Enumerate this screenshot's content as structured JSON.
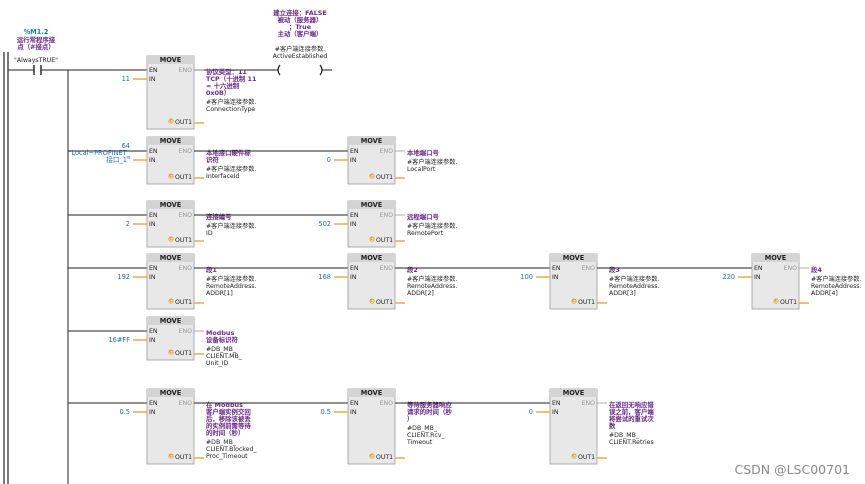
{
  "contact": {
    "address": "%M1.2",
    "comment_lines": [
      "运行常程序接",
      "点（#接点）"
    ],
    "tag": "\"AlwaysTRUE\""
  },
  "coil": {
    "label_lines": [
      "建立连接：FALSE",
      "被动（服务器）",
      "；True",
      "主动（客户端）"
    ],
    "comment": "#客户端连接参数.",
    "member": "ActiveEstablished"
  },
  "block_title": "MOVE",
  "pins": {
    "en": "EN",
    "eno": "ENO",
    "in": "IN",
    "out1": "OUT1"
  },
  "rows": [
    {
      "blocks": [
        {
          "in_value": [
            "11"
          ],
          "out_lines": [
            "协议类型：11",
            "TCP（十进制 11",
            "= 十六进制",
            "0x0B）"
          ],
          "out_comment": [
            "#客户端连接参数.",
            "ConnectionType"
          ]
        }
      ]
    },
    {
      "blocks": [
        {
          "in_value": [
            "64",
            "\"Local~PROFINET_",
            "接口_1\""
          ],
          "out_lines": [
            "本地接口硬件标",
            "识符"
          ],
          "out_comment": [
            "#客户端连接参数.",
            "InterfaceId"
          ]
        },
        {
          "in_value": [
            "0"
          ],
          "out_lines": [
            "本地端口号"
          ],
          "out_comment": [
            "#客户端连接参数.",
            "LocalPort"
          ]
        }
      ]
    },
    {
      "blocks": [
        {
          "in_value": [
            "2"
          ],
          "out_lines": [
            "连接编号"
          ],
          "out_comment": [
            "#客户端连接参数.",
            "ID"
          ]
        },
        {
          "in_value": [
            "502"
          ],
          "out_lines": [
            "远程端口号"
          ],
          "out_comment": [
            "#客户端连接参数.",
            "RemotePort"
          ]
        }
      ]
    },
    {
      "blocks": [
        {
          "in_value": [
            "192"
          ],
          "out_lines": [
            "段1"
          ],
          "out_comment": [
            "#客户端连接参数.",
            "RemoteAddress.",
            "ADDR[1]"
          ]
        },
        {
          "in_value": [
            "168"
          ],
          "out_lines": [
            "段2"
          ],
          "out_comment": [
            "#客户端连接参数.",
            "RemoteAddress.",
            "ADDR[2]"
          ]
        },
        {
          "in_value": [
            "100"
          ],
          "out_lines": [
            "段3"
          ],
          "out_comment": [
            "#客户端连接参数.",
            "RemoteAddress.",
            "ADDR[3]"
          ]
        },
        {
          "in_value": [
            "220"
          ],
          "out_lines": [
            "段4"
          ],
          "out_comment": [
            "#客户端连接参数.",
            "RemoteAddress.",
            "ADDR[4]"
          ]
        }
      ]
    },
    {
      "blocks": [
        {
          "in_value": [
            "16#FF"
          ],
          "out_lines": [
            "Modbus",
            "设备标识符"
          ],
          "out_comment": [
            "#DB_MB_",
            "CLIENT.MB_",
            "Unit_ID"
          ]
        }
      ]
    },
    {
      "blocks": [
        {
          "in_value": [
            "0.5"
          ],
          "out_lines": [
            "在 Modbus",
            "客户端实例交回",
            "后，移除该被丢",
            "的实例前需等待",
            "的时间（秒）"
          ],
          "out_comment": [
            "#DB_MB_",
            "CLIENT.Blocked_",
            "Proc_Timeout"
          ]
        },
        {
          "in_value": [
            "0.5"
          ],
          "out_lines": [
            "等待服务器响应",
            "请求的时间（秒",
            "）"
          ],
          "out_comment": [
            "#DB_MB_",
            "CLIENT.Rcv_",
            "Timeout"
          ]
        },
        {
          "in_value": [
            "0"
          ],
          "out_lines": [
            "在返回无响应错",
            "误之前，客户端",
            "将尝试的重试次",
            "数"
          ],
          "out_comment": [
            "#DB_MB_",
            "CLIENT.Retries"
          ]
        }
      ]
    }
  ],
  "watermark": "CSDN @LSC00701",
  "colors": {
    "wire": "#222222",
    "block_fill": "#e8e8e8",
    "block_header": "#d4d4d4",
    "var": "#6a2a8c",
    "value": "#1f6fb8",
    "address": "#138a8a",
    "out_icon": "#e7a83b"
  }
}
